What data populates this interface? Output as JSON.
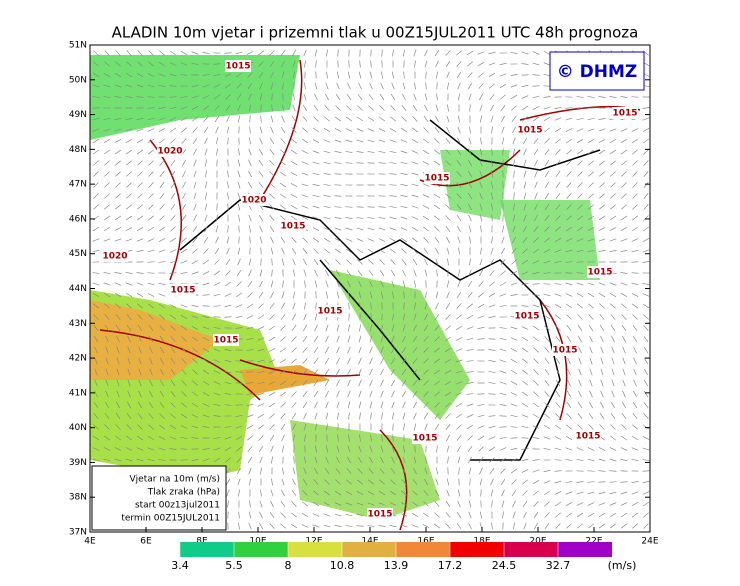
{
  "title": "ALADIN 10m vjetar i prizemni tlak u 00Z15JUL2011 UTC 48h prognoza",
  "logo": "© DHMZ",
  "lat_labels": [
    "51N",
    "50N",
    "49N",
    "48N",
    "47N",
    "46N",
    "45N",
    "44N",
    "43N",
    "42N",
    "41N",
    "40N",
    "39N",
    "38N",
    "37N"
  ],
  "lon_labels": [
    "4E",
    "6E",
    "8E",
    "10E",
    "12E",
    "14E",
    "16E",
    "18E",
    "20E",
    "22E",
    "24E"
  ],
  "isobar_labels": [
    "1015",
    "1015",
    "1015",
    "1020",
    "1015",
    "1020",
    "1015",
    "1020",
    "1015",
    "1015",
    "1015",
    "1015",
    "1015",
    "1015",
    "1015",
    "1015",
    "1015"
  ],
  "info_box": [
    "Vjetar na 10m (m/s)",
    "Tlak zraka (hPa)",
    "start 00z13jul2011",
    "termin 00Z15JUL2011"
  ],
  "colorbar": {
    "values": [
      3.4,
      5.5,
      8,
      10.8,
      13.9,
      17.2,
      24.5,
      32.7
    ],
    "colors": [
      "#10cc88",
      "#30d040",
      "#d8e040",
      "#e0b040",
      "#f08838",
      "#f00000",
      "#d8004c",
      "#a000c8"
    ],
    "unit": "(m/s)"
  }
}
